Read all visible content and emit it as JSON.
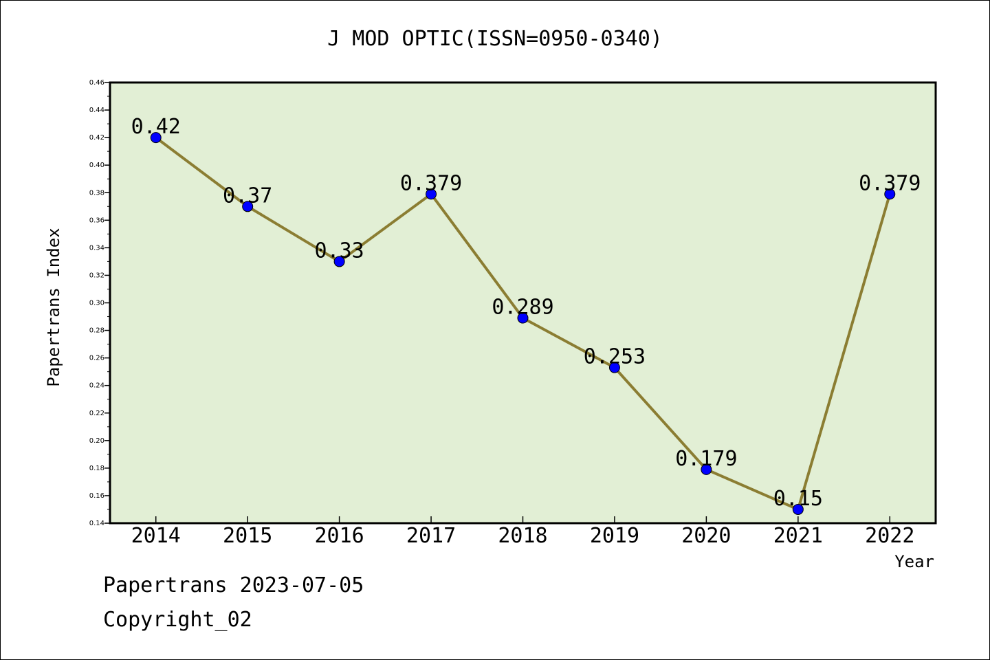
{
  "chart_data": {
    "type": "line",
    "title": "J MOD OPTIC(ISSN=0950-0340)",
    "xlabel": "Year",
    "ylabel": "Papertrans Index",
    "categories": [
      "2014",
      "2015",
      "2016",
      "2017",
      "2018",
      "2019",
      "2020",
      "2021",
      "2022"
    ],
    "values": [
      0.42,
      0.37,
      0.33,
      0.379,
      0.289,
      0.253,
      0.179,
      0.15,
      0.379
    ],
    "data_labels": [
      "0.42",
      "0.37",
      "0.33",
      "0.379",
      "0.289",
      "0.253",
      "0.179",
      "0.15",
      "0.379"
    ],
    "ylim": [
      0.14,
      0.46
    ],
    "yticks": [
      "0.14",
      "0.16",
      "0.18",
      "0.20",
      "0.22",
      "0.24",
      "0.26",
      "0.28",
      "0.30",
      "0.32",
      "0.34",
      "0.36",
      "0.38",
      "0.40",
      "0.42",
      "0.44",
      "0.46"
    ],
    "grid": false,
    "colors": {
      "plot_bg": "#e2efd5",
      "line": "#8b7d32",
      "marker": "#0000ff"
    }
  },
  "footer": {
    "line1": "Papertrans 2023-07-05",
    "line2": "Copyright_02"
  }
}
